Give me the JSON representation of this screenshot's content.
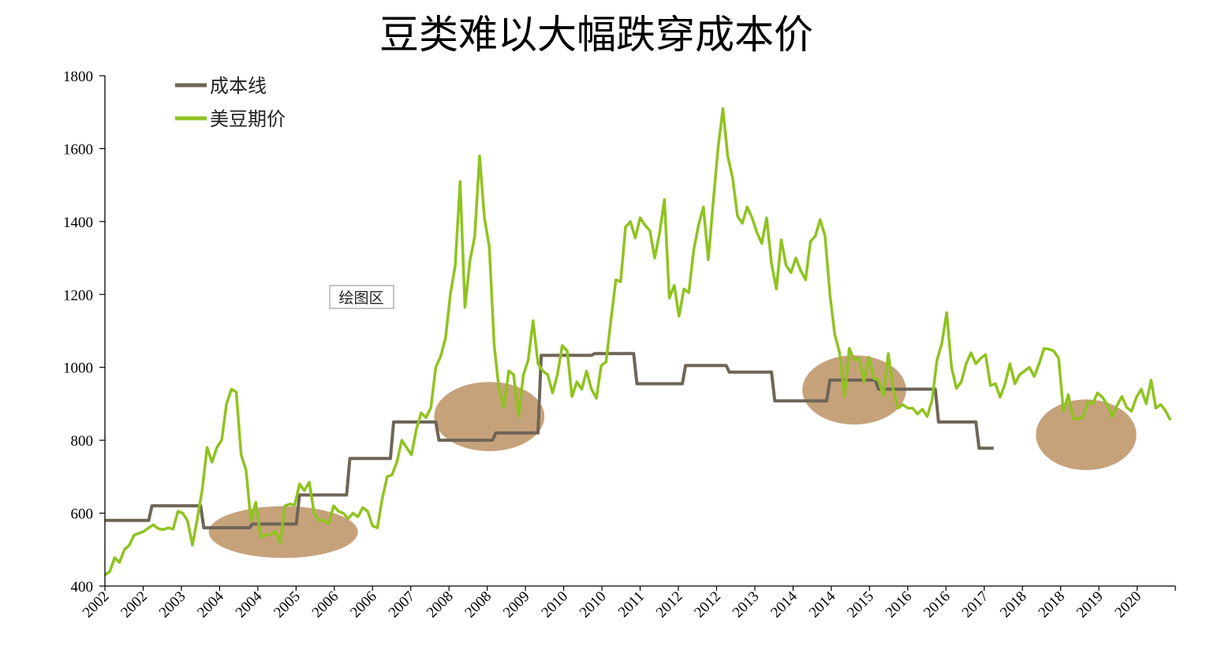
{
  "chart_data": {
    "type": "line",
    "title": "豆类难以大幅跌穿成本价",
    "ylim": [
      400,
      1800
    ],
    "yticks": [
      400,
      600,
      800,
      1000,
      1200,
      1400,
      1600,
      1800
    ],
    "xticks": [
      "2002",
      "2002",
      "2003",
      "2004",
      "2004",
      "2005",
      "2006",
      "2006",
      "2007",
      "2008",
      "2008",
      "2009",
      "2010",
      "2010",
      "2011",
      "2012",
      "2012",
      "2013",
      "2014",
      "2014",
      "2015",
      "2016",
      "2016",
      "2017",
      "2018",
      "2018",
      "2019",
      "2020"
    ],
    "legend_position": "top-left",
    "annotation": "绘图区",
    "colors": {
      "cost": "#6e6556",
      "price": "#8fc31f",
      "ellipse": "#c6a27b",
      "axis": "#000000"
    },
    "series": [
      {
        "name": "成本线",
        "points": [
          [
            0,
            580
          ],
          [
            2.7,
            580
          ],
          [
            2.9,
            620
          ],
          [
            5.9,
            620
          ],
          [
            6.1,
            560
          ],
          [
            8.9,
            560
          ],
          [
            9.1,
            570
          ],
          [
            11.8,
            570
          ],
          [
            12.0,
            650
          ],
          [
            14.9,
            650
          ],
          [
            15.1,
            750
          ],
          [
            17.6,
            750
          ],
          [
            17.8,
            850
          ],
          [
            20.4,
            850
          ],
          [
            20.6,
            800
          ],
          [
            23.9,
            800
          ],
          [
            24.1,
            820
          ],
          [
            26.7,
            820
          ],
          [
            26.9,
            1033
          ],
          [
            30,
            1033
          ],
          [
            30.2,
            1038
          ],
          [
            32.6,
            1038
          ],
          [
            32.8,
            955
          ],
          [
            35.6,
            955
          ],
          [
            35.8,
            1005
          ],
          [
            38.3,
            1005
          ],
          [
            38.5,
            987
          ],
          [
            41.1,
            987
          ],
          [
            41.3,
            908
          ],
          [
            44.5,
            908
          ],
          [
            44.7,
            965
          ],
          [
            47.5,
            965
          ],
          [
            47.7,
            940
          ],
          [
            51.2,
            940
          ],
          [
            51.4,
            850
          ],
          [
            53.7,
            850
          ],
          [
            53.9,
            778
          ],
          [
            54.8,
            778
          ]
        ]
      },
      {
        "name": "美豆期价",
        "points": [
          [
            0,
            430
          ],
          [
            0.3,
            440
          ],
          [
            0.6,
            478
          ],
          [
            0.9,
            465
          ],
          [
            1.2,
            500
          ],
          [
            1.5,
            512
          ],
          [
            1.8,
            540
          ],
          [
            2.1,
            545
          ],
          [
            2.4,
            550
          ],
          [
            2.7,
            560
          ],
          [
            3.0,
            568
          ],
          [
            3.3,
            557
          ],
          [
            3.6,
            555
          ],
          [
            3.9,
            560
          ],
          [
            4.2,
            556
          ],
          [
            4.5,
            605
          ],
          [
            4.8,
            600
          ],
          [
            5.1,
            578
          ],
          [
            5.4,
            512
          ],
          [
            5.7,
            585
          ],
          [
            6.0,
            665
          ],
          [
            6.3,
            780
          ],
          [
            6.6,
            740
          ],
          [
            6.9,
            780
          ],
          [
            7.2,
            800
          ],
          [
            7.5,
            900
          ],
          [
            7.8,
            940
          ],
          [
            8.1,
            932
          ],
          [
            8.4,
            760
          ],
          [
            8.7,
            718
          ],
          [
            9.0,
            580
          ],
          [
            9.3,
            630
          ],
          [
            9.6,
            535
          ],
          [
            9.9,
            540
          ],
          [
            10.2,
            540
          ],
          [
            10.5,
            550
          ],
          [
            10.8,
            518
          ],
          [
            11.1,
            620
          ],
          [
            11.4,
            625
          ],
          [
            11.7,
            622
          ],
          [
            12.0,
            680
          ],
          [
            12.3,
            662
          ],
          [
            12.6,
            685
          ],
          [
            12.9,
            600
          ],
          [
            13.2,
            580
          ],
          [
            13.5,
            580
          ],
          [
            13.8,
            570
          ],
          [
            14.1,
            620
          ],
          [
            14.4,
            605
          ],
          [
            14.7,
            600
          ],
          [
            15.0,
            585
          ],
          [
            15.3,
            600
          ],
          [
            15.6,
            590
          ],
          [
            15.9,
            615
          ],
          [
            16.2,
            605
          ],
          [
            16.5,
            565
          ],
          [
            16.8,
            560
          ],
          [
            17.1,
            640
          ],
          [
            17.4,
            700
          ],
          [
            17.7,
            705
          ],
          [
            18.0,
            740
          ],
          [
            18.3,
            800
          ],
          [
            18.6,
            780
          ],
          [
            18.9,
            760
          ],
          [
            19.2,
            830
          ],
          [
            19.5,
            875
          ],
          [
            19.8,
            862
          ],
          [
            20.1,
            890
          ],
          [
            20.4,
            1000
          ],
          [
            20.7,
            1030
          ],
          [
            21.0,
            1080
          ],
          [
            21.3,
            1200
          ],
          [
            21.6,
            1280
          ],
          [
            21.9,
            1510
          ],
          [
            22.2,
            1165
          ],
          [
            22.5,
            1290
          ],
          [
            22.8,
            1360
          ],
          [
            23.1,
            1580
          ],
          [
            23.4,
            1410
          ],
          [
            23.7,
            1330
          ],
          [
            24.0,
            1060
          ],
          [
            24.3,
            940
          ],
          [
            24.6,
            890
          ],
          [
            24.9,
            990
          ],
          [
            25.2,
            980
          ],
          [
            25.5,
            865
          ],
          [
            25.8,
            980
          ],
          [
            26.1,
            1020
          ],
          [
            26.4,
            1128
          ],
          [
            26.7,
            1010
          ],
          [
            27.0,
            990
          ],
          [
            27.3,
            980
          ],
          [
            27.6,
            930
          ],
          [
            27.9,
            980
          ],
          [
            28.2,
            1060
          ],
          [
            28.5,
            1045
          ],
          [
            28.8,
            920
          ],
          [
            29.1,
            960
          ],
          [
            29.4,
            940
          ],
          [
            29.7,
            990
          ],
          [
            30.0,
            940
          ],
          [
            30.3,
            915
          ],
          [
            30.6,
            1005
          ],
          [
            30.9,
            1015
          ],
          [
            31.2,
            1130
          ],
          [
            31.5,
            1240
          ],
          [
            31.8,
            1235
          ],
          [
            32.1,
            1385
          ],
          [
            32.4,
            1400
          ],
          [
            32.7,
            1355
          ],
          [
            33.0,
            1410
          ],
          [
            33.3,
            1390
          ],
          [
            33.6,
            1375
          ],
          [
            33.9,
            1300
          ],
          [
            34.2,
            1370
          ],
          [
            34.5,
            1460
          ],
          [
            34.8,
            1190
          ],
          [
            35.1,
            1225
          ],
          [
            35.4,
            1140
          ],
          [
            35.7,
            1215
          ],
          [
            36.0,
            1205
          ],
          [
            36.3,
            1320
          ],
          [
            36.6,
            1390
          ],
          [
            36.9,
            1440
          ],
          [
            37.2,
            1295
          ],
          [
            37.5,
            1450
          ],
          [
            37.8,
            1600
          ],
          [
            38.1,
            1710
          ],
          [
            38.4,
            1580
          ],
          [
            38.7,
            1520
          ],
          [
            39.0,
            1415
          ],
          [
            39.3,
            1395
          ],
          [
            39.6,
            1440
          ],
          [
            39.9,
            1410
          ],
          [
            40.2,
            1370
          ],
          [
            40.5,
            1340
          ],
          [
            40.8,
            1410
          ],
          [
            41.1,
            1285
          ],
          [
            41.4,
            1215
          ],
          [
            41.7,
            1350
          ],
          [
            42.0,
            1280
          ],
          [
            42.3,
            1260
          ],
          [
            42.6,
            1300
          ],
          [
            42.9,
            1265
          ],
          [
            43.2,
            1240
          ],
          [
            43.5,
            1345
          ],
          [
            43.8,
            1360
          ],
          [
            44.1,
            1405
          ],
          [
            44.4,
            1360
          ],
          [
            44.7,
            1200
          ],
          [
            45.0,
            1090
          ],
          [
            45.3,
            1040
          ],
          [
            45.6,
            920
          ],
          [
            45.9,
            1052
          ],
          [
            46.2,
            1020
          ],
          [
            46.5,
            1025
          ],
          [
            46.8,
            960
          ],
          [
            47.1,
            1028
          ],
          [
            47.4,
            970
          ],
          [
            47.7,
            965
          ],
          [
            48.0,
            922
          ],
          [
            48.3,
            1038
          ],
          [
            48.6,
            940
          ],
          [
            48.9,
            888
          ],
          [
            49.2,
            898
          ],
          [
            49.5,
            888
          ],
          [
            49.8,
            888
          ],
          [
            50.1,
            872
          ],
          [
            50.4,
            885
          ],
          [
            50.7,
            865
          ],
          [
            51.0,
            910
          ],
          [
            51.3,
            1020
          ],
          [
            51.6,
            1065
          ],
          [
            51.9,
            1150
          ],
          [
            52.2,
            1000
          ],
          [
            52.5,
            942
          ],
          [
            52.8,
            960
          ],
          [
            53.1,
            1010
          ],
          [
            53.4,
            1040
          ],
          [
            53.7,
            1010
          ],
          [
            54.0,
            1025
          ],
          [
            54.3,
            1035
          ],
          [
            54.6,
            950
          ],
          [
            54.9,
            955
          ],
          [
            55.2,
            918
          ],
          [
            55.5,
            955
          ],
          [
            55.8,
            1010
          ],
          [
            56.1,
            955
          ],
          [
            56.4,
            980
          ],
          [
            56.7,
            990
          ],
          [
            57.0,
            1000
          ],
          [
            57.3,
            975
          ],
          [
            57.6,
            1010
          ],
          [
            57.9,
            1052
          ],
          [
            58.2,
            1050
          ],
          [
            58.5,
            1045
          ],
          [
            58.8,
            1025
          ],
          [
            59.1,
            880
          ],
          [
            59.4,
            925
          ],
          [
            59.7,
            858
          ],
          [
            60.0,
            860
          ],
          [
            60.3,
            862
          ],
          [
            60.6,
            905
          ],
          [
            60.9,
            900
          ],
          [
            61.2,
            930
          ],
          [
            61.5,
            918
          ],
          [
            61.8,
            898
          ],
          [
            62.1,
            865
          ],
          [
            62.4,
            895
          ],
          [
            62.7,
            920
          ],
          [
            63.0,
            890
          ],
          [
            63.3,
            880
          ],
          [
            63.6,
            918
          ],
          [
            63.9,
            940
          ],
          [
            64.2,
            900
          ],
          [
            64.5,
            965
          ],
          [
            64.8,
            888
          ],
          [
            65.1,
            898
          ],
          [
            65.4,
            880
          ],
          [
            65.7,
            855
          ]
        ]
      }
    ],
    "highlight_regions": [
      {
        "x_center": 11.0,
        "y_center": 548,
        "x_radius": 4.6,
        "y_radius": 71
      },
      {
        "x_center": 23.7,
        "y_center": 865,
        "x_radius": 3.4,
        "y_radius": 95
      },
      {
        "x_center": 46.2,
        "y_center": 938,
        "x_radius": 3.2,
        "y_radius": 95
      },
      {
        "x_center": 60.5,
        "y_center": 815,
        "x_radius": 3.1,
        "y_radius": 97
      }
    ]
  }
}
